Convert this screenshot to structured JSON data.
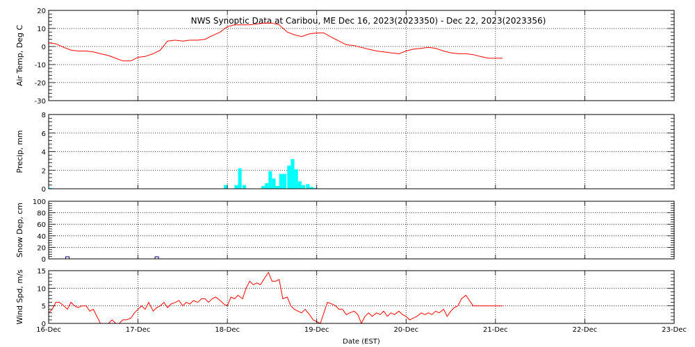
{
  "chart_data": {
    "title": "NWS Synoptic Data at Caribou, ME    Dec 16, 2023(2023350) - Dec 22, 2023(2023356)",
    "xlabel": "Date (EST)",
    "x_ticks": [
      "16-Dec",
      "17-Dec",
      "18-Dec",
      "19-Dec",
      "20-Dec",
      "21-Dec",
      "22-Dec",
      "23-Dec"
    ],
    "x_range_days": [
      0,
      7
    ],
    "grid": true,
    "panels": [
      {
        "id": "temp",
        "type": "line",
        "ylabel": "Air Temp, Deg C",
        "ylim": [
          -30,
          20
        ],
        "y_ticks": [
          20,
          10,
          0,
          -10,
          -20,
          -30
        ],
        "color": "#ff0000",
        "x": [
          0,
          0.08,
          0.17,
          0.25,
          0.33,
          0.42,
          0.5,
          0.58,
          0.67,
          0.75,
          0.83,
          0.92,
          1.0,
          1.08,
          1.17,
          1.25,
          1.33,
          1.42,
          1.5,
          1.58,
          1.67,
          1.75,
          1.83,
          1.92,
          2.0,
          2.08,
          2.17,
          2.25,
          2.33,
          2.42,
          2.5,
          2.58,
          2.67,
          2.75,
          2.83,
          2.92,
          3.0,
          3.08,
          3.17,
          3.25,
          3.33,
          3.42,
          3.5,
          3.58,
          3.67,
          3.75,
          3.83,
          3.92,
          4.0,
          4.08,
          4.17,
          4.25,
          4.33,
          4.42,
          4.5,
          4.58,
          4.67,
          4.75,
          4.83,
          4.92,
          5.0,
          5.08
        ],
        "y": [
          2,
          1.5,
          -0.5,
          -2,
          -2.5,
          -2.5,
          -3,
          -4,
          -5,
          -6.5,
          -8,
          -8,
          -6,
          -5.5,
          -4,
          -2,
          3,
          3.5,
          3,
          3.5,
          3.5,
          4,
          6,
          8,
          11,
          12,
          12,
          12,
          12.5,
          13,
          13,
          12,
          8,
          6.5,
          5.5,
          7,
          7.5,
          7.5,
          5,
          3,
          1,
          0.5,
          -0.5,
          -1.5,
          -2.5,
          -3,
          -3.5,
          -4,
          -2.5,
          -1.5,
          -1,
          -0.5,
          -1,
          -2.5,
          -3.5,
          -4,
          -4,
          -4.5,
          -5.5,
          -6.5,
          -6.5,
          -6.5
        ]
      },
      {
        "id": "precip",
        "type": "bar",
        "ylabel": "Precip, mm",
        "ylim": [
          0,
          8
        ],
        "y_ticks": [
          8,
          6,
          4,
          2,
          0
        ],
        "color": "#00ffff",
        "x": [
          0.0,
          1.96,
          2.08,
          2.12,
          2.17,
          2.38,
          2.42,
          2.46,
          2.5,
          2.54,
          2.58,
          2.62,
          2.67,
          2.71,
          2.75,
          2.79,
          2.83,
          2.88,
          2.92,
          2.96
        ],
        "bar_width_days": 0.04,
        "values": [
          0.1,
          0.4,
          0.4,
          2.2,
          0.4,
          0.3,
          0.6,
          1.9,
          1.1,
          0.3,
          1.6,
          1.6,
          2.5,
          3.2,
          2.1,
          0.8,
          0.4,
          0.5,
          0.2,
          0.1
        ]
      },
      {
        "id": "snow",
        "type": "scatter",
        "ylabel": "Snow Dep, cm",
        "ylim": [
          0,
          100
        ],
        "y_ticks": [
          100,
          80,
          60,
          40,
          20,
          0
        ],
        "color": "#000080",
        "x": [
          0.21,
          1.21
        ],
        "y": [
          0,
          0
        ]
      },
      {
        "id": "wind",
        "type": "line",
        "ylabel": "Wind Spd, m/s",
        "ylim": [
          0,
          15
        ],
        "y_ticks": [
          15,
          10,
          5,
          0
        ],
        "color": "#ff0000",
        "x": [
          0,
          0.04,
          0.08,
          0.12,
          0.17,
          0.21,
          0.25,
          0.29,
          0.33,
          0.37,
          0.42,
          0.46,
          0.5,
          0.54,
          0.58,
          0.62,
          0.67,
          0.71,
          0.75,
          0.79,
          0.83,
          0.87,
          0.92,
          0.96,
          1.0,
          1.04,
          1.08,
          1.12,
          1.17,
          1.21,
          1.25,
          1.29,
          1.33,
          1.37,
          1.42,
          1.46,
          1.5,
          1.54,
          1.58,
          1.62,
          1.67,
          1.71,
          1.75,
          1.79,
          1.83,
          1.87,
          1.92,
          1.96,
          2.0,
          2.04,
          2.08,
          2.12,
          2.17,
          2.21,
          2.25,
          2.29,
          2.33,
          2.37,
          2.42,
          2.46,
          2.5,
          2.54,
          2.58,
          2.62,
          2.67,
          2.71,
          2.75,
          2.79,
          2.83,
          2.87,
          2.92,
          2.96,
          3.0,
          3.04,
          3.08,
          3.12,
          3.17,
          3.21,
          3.25,
          3.29,
          3.33,
          3.37,
          3.42,
          3.46,
          3.5,
          3.54,
          3.58,
          3.62,
          3.67,
          3.71,
          3.75,
          3.79,
          3.83,
          3.87,
          3.92,
          3.96,
          4.0,
          4.04,
          4.08,
          4.12,
          4.17,
          4.21,
          4.25,
          4.29,
          4.33,
          4.37,
          4.42,
          4.46,
          4.5,
          4.54,
          4.58,
          4.62,
          4.67,
          4.71,
          4.75,
          4.79,
          4.83,
          4.87,
          4.92,
          4.96,
          5.0,
          5.04,
          5.08
        ],
        "y": [
          3,
          4,
          6,
          6,
          5,
          4,
          6,
          5,
          4.5,
          5,
          5,
          3.5,
          4,
          2,
          0,
          0,
          0,
          1,
          0,
          0,
          1,
          1,
          1.5,
          3,
          4,
          5,
          4,
          6,
          3.5,
          4.5,
          5,
          6,
          4.5,
          5.5,
          6,
          6.5,
          5,
          6,
          5.5,
          6.5,
          6,
          7,
          7,
          6,
          7,
          7.5,
          6.5,
          5.5,
          5,
          7.5,
          7,
          8,
          7,
          10,
          12,
          11,
          11.5,
          11,
          13,
          14.5,
          12,
          12,
          12.5,
          7,
          7.5,
          5,
          4,
          3.5,
          3,
          4,
          2.5,
          1,
          0.5,
          0,
          3,
          6,
          5.5,
          5,
          4,
          4,
          2.5,
          3,
          3.5,
          2.5,
          0,
          2,
          3,
          2,
          3,
          2.5,
          3.5,
          2,
          3,
          2.5,
          3.5,
          2.5,
          2,
          1,
          1.5,
          2,
          3,
          2.5,
          3,
          2.5,
          3.5,
          3,
          4,
          2,
          3.5,
          4.5,
          5,
          7,
          8,
          6.5,
          5,
          5,
          5,
          5,
          5,
          5,
          5,
          5,
          5
        ]
      }
    ]
  }
}
